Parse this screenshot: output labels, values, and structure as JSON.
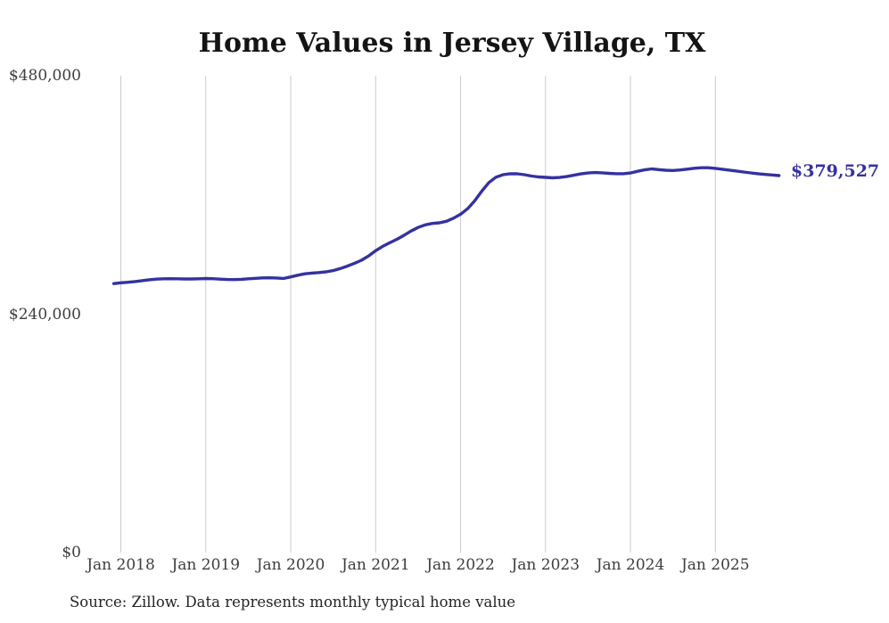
{
  "chart_data": {
    "type": "line",
    "title": "Home Values in Jersey Village, TX",
    "source_note": "Source: Zillow. Data represents monthly typical home value",
    "end_label": "$379,527",
    "end_value": 379527,
    "series_name": "Monthly typical home value",
    "line_color": "#3432a0",
    "grid_color": "#cbcbcb",
    "background_color": "#ffffff",
    "grid": "vertical-only",
    "legend_position": "none",
    "ylim": [
      0,
      480000
    ],
    "y_ticks": [
      {
        "label": "$480,000",
        "value": 480000
      },
      {
        "label": "$240,000",
        "value": 240000
      },
      {
        "label": "$0",
        "value": 0
      }
    ],
    "x_ticks": [
      {
        "label": "Jan 2018",
        "month": "2018-01"
      },
      {
        "label": "Jan 2019",
        "month": "2019-01"
      },
      {
        "label": "Jan 2020",
        "month": "2020-01"
      },
      {
        "label": "Jan 2021",
        "month": "2021-01"
      },
      {
        "label": "Jan 2022",
        "month": "2022-01"
      },
      {
        "label": "Jan 2023",
        "month": "2023-01"
      },
      {
        "label": "Jan 2024",
        "month": "2024-01"
      },
      {
        "label": "Jan 2025",
        "month": "2025-01"
      }
    ],
    "points": [
      [
        "2017-12",
        270800
      ],
      [
        "2018-01",
        271600
      ],
      [
        "2018-02",
        272100
      ],
      [
        "2018-03",
        272800
      ],
      [
        "2018-04",
        273700
      ],
      [
        "2018-05",
        274600
      ],
      [
        "2018-06",
        275300
      ],
      [
        "2018-07",
        275600
      ],
      [
        "2018-08",
        275700
      ],
      [
        "2018-09",
        275600
      ],
      [
        "2018-10",
        275400
      ],
      [
        "2018-11",
        275400
      ],
      [
        "2018-12",
        275600
      ],
      [
        "2019-01",
        275900
      ],
      [
        "2019-02",
        275700
      ],
      [
        "2019-03",
        275300
      ],
      [
        "2019-04",
        274900
      ],
      [
        "2019-05",
        274800
      ],
      [
        "2019-06",
        275100
      ],
      [
        "2019-07",
        275600
      ],
      [
        "2019-08",
        276100
      ],
      [
        "2019-09",
        276500
      ],
      [
        "2019-10",
        276600
      ],
      [
        "2019-11",
        276400
      ],
      [
        "2019-12",
        276000
      ],
      [
        "2020-01",
        277500
      ],
      [
        "2020-02",
        279200
      ],
      [
        "2020-03",
        280600
      ],
      [
        "2020-04",
        281400
      ],
      [
        "2020-05",
        281900
      ],
      [
        "2020-06",
        282600
      ],
      [
        "2020-07",
        283900
      ],
      [
        "2020-08",
        285900
      ],
      [
        "2020-09",
        288400
      ],
      [
        "2020-10",
        291200
      ],
      [
        "2020-11",
        294300
      ],
      [
        "2020-12",
        298600
      ],
      [
        "2021-01",
        303900
      ],
      [
        "2021-02",
        308300
      ],
      [
        "2021-03",
        311900
      ],
      [
        "2021-04",
        315400
      ],
      [
        "2021-05",
        319300
      ],
      [
        "2021-06",
        323700
      ],
      [
        "2021-07",
        327300
      ],
      [
        "2021-08",
        329900
      ],
      [
        "2021-09",
        331300
      ],
      [
        "2021-10",
        332000
      ],
      [
        "2021-11",
        333500
      ],
      [
        "2021-12",
        336600
      ],
      [
        "2022-01",
        340600
      ],
      [
        "2022-02",
        346200
      ],
      [
        "2022-03",
        354100
      ],
      [
        "2022-04",
        363800
      ],
      [
        "2022-05",
        372500
      ],
      [
        "2022-06",
        377900
      ],
      [
        "2022-07",
        380400
      ],
      [
        "2022-08",
        381400
      ],
      [
        "2022-09",
        381300
      ],
      [
        "2022-10",
        380400
      ],
      [
        "2022-11",
        379100
      ],
      [
        "2022-12",
        378200
      ],
      [
        "2023-01",
        377700
      ],
      [
        "2023-02",
        377300
      ],
      [
        "2023-03",
        377600
      ],
      [
        "2023-04",
        378500
      ],
      [
        "2023-05",
        379900
      ],
      [
        "2023-06",
        381200
      ],
      [
        "2023-07",
        382100
      ],
      [
        "2023-08",
        382600
      ],
      [
        "2023-09",
        382300
      ],
      [
        "2023-10",
        381800
      ],
      [
        "2023-11",
        381400
      ],
      [
        "2023-12",
        381400
      ],
      [
        "2024-01",
        382100
      ],
      [
        "2024-02",
        383800
      ],
      [
        "2024-03",
        385300
      ],
      [
        "2024-04",
        386200
      ],
      [
        "2024-05",
        385500
      ],
      [
        "2024-06",
        384900
      ],
      [
        "2024-07",
        384600
      ],
      [
        "2024-08",
        385200
      ],
      [
        "2024-09",
        386000
      ],
      [
        "2024-10",
        386900
      ],
      [
        "2024-11",
        387400
      ],
      [
        "2024-12",
        387400
      ],
      [
        "2025-01",
        386800
      ],
      [
        "2025-02",
        385900
      ],
      [
        "2025-03",
        385000
      ],
      [
        "2025-04",
        384100
      ],
      [
        "2025-05",
        383100
      ],
      [
        "2025-06",
        382200
      ],
      [
        "2025-07",
        381400
      ],
      [
        "2025-08",
        380700
      ],
      [
        "2025-09",
        380100
      ],
      [
        "2025-10",
        379527
      ]
    ]
  }
}
